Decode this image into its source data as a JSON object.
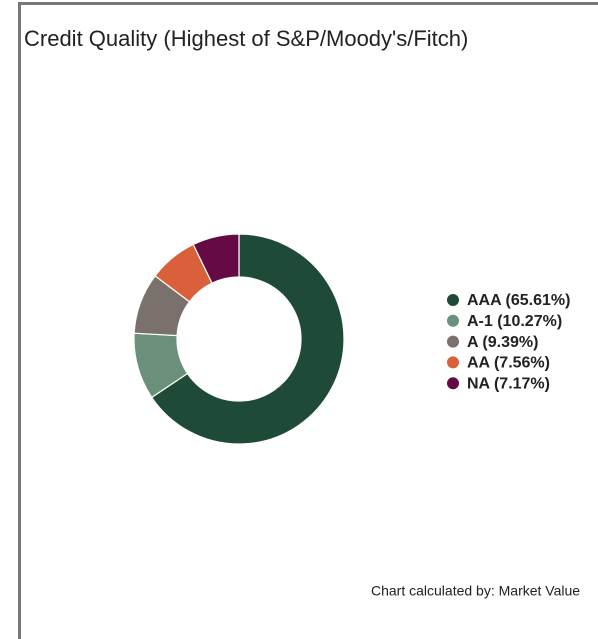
{
  "chart_data": {
    "type": "donut",
    "title": "Credit Quality (Highest of S&P/Moody's/Fitch)",
    "categories": [
      "AAA (65.61%)",
      "A-1 (10.27%)",
      "A (9.39%)",
      "AA (7.56%)",
      "NA (7.17%)"
    ],
    "values": [
      65.61,
      10.27,
      9.39,
      7.56,
      7.17
    ],
    "colors": [
      "#1f4a37",
      "#6a8f7b",
      "#7a716d",
      "#d9603a",
      "#650a45"
    ],
    "footnote": "Chart calculated by: Market Value"
  }
}
